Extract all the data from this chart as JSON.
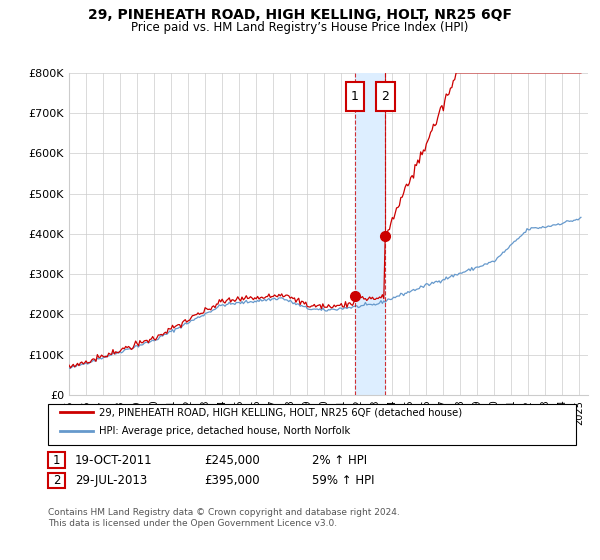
{
  "title": "29, PINEHEATH ROAD, HIGH KELLING, HOLT, NR25 6QF",
  "subtitle": "Price paid vs. HM Land Registry’s House Price Index (HPI)",
  "ylabel_ticks": [
    "£0",
    "£100K",
    "£200K",
    "£300K",
    "£400K",
    "£500K",
    "£600K",
    "£700K",
    "£800K"
  ],
  "ytick_values": [
    0,
    100000,
    200000,
    300000,
    400000,
    500000,
    600000,
    700000,
    800000
  ],
  "ylim": [
    0,
    800000
  ],
  "xlim_start": 1995.0,
  "xlim_end": 2025.5,
  "red_line_label": "29, PINEHEATH ROAD, HIGH KELLING, HOLT, NR25 6QF (detached house)",
  "blue_line_label": "HPI: Average price, detached house, North Norfolk",
  "transaction1_date": "19-OCT-2011",
  "transaction1_price": "£245,000",
  "transaction1_info": "2% ↑ HPI",
  "transaction2_date": "29-JUL-2013",
  "transaction2_price": "£395,000",
  "transaction2_info": "59% ↑ HPI",
  "footnote": "Contains HM Land Registry data © Crown copyright and database right 2024.\nThis data is licensed under the Open Government Licence v3.0.",
  "marker1_x": 2011.8,
  "marker1_y": 245000,
  "marker2_x": 2013.58,
  "marker2_y": 395000,
  "vline1_x": 2011.8,
  "vline2_x": 2013.58,
  "red_color": "#cc0000",
  "blue_color": "#6699cc",
  "shade_color": "#ddeeff",
  "grid_color": "#cccccc",
  "background_color": "#ffffff"
}
